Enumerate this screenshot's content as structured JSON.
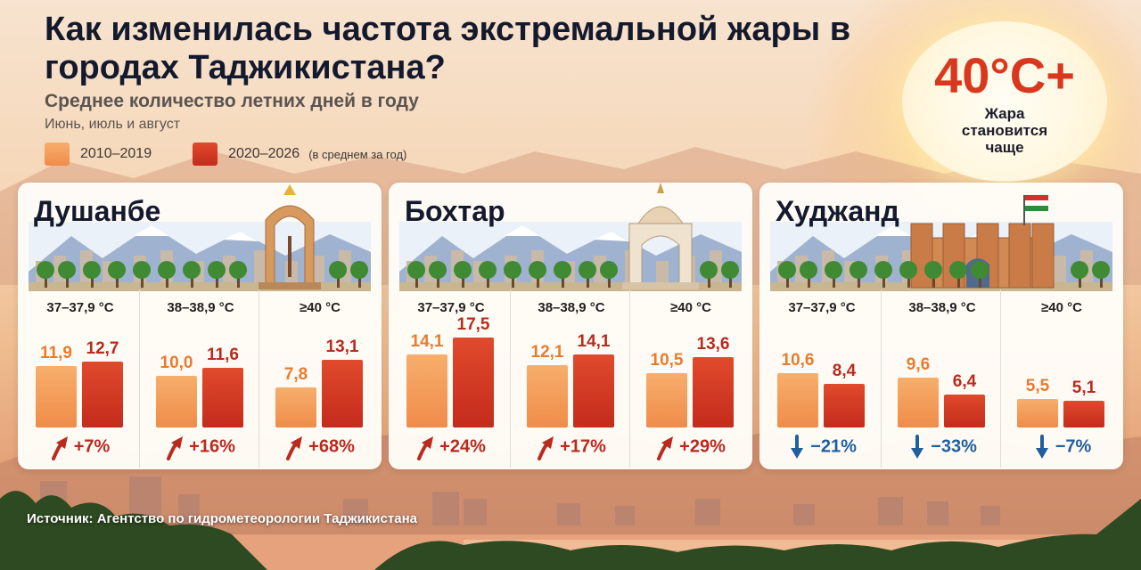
{
  "title": "Как изменилась частота экстремальной жары в городах Таджикистана?",
  "subtitle": "Среднее количество летних дней в году",
  "subnote": "Июнь, июль и август",
  "legend": {
    "period1": "2010–2019",
    "period2": "2020–2026",
    "period2_note": "(в среднем за год)"
  },
  "colors": {
    "period1": "#f4a15d",
    "period2": "#d23a24",
    "up": "#b92a1f",
    "down": "#1f5f9e"
  },
  "badge": {
    "big": "40°C+",
    "text": "Жара становится чаще"
  },
  "source": "Источник: Агентство по гидрометеорологии Таджикистана",
  "chart_data": {
    "type": "bar",
    "categories": [
      "37–37,9 °C",
      "38–38,9 °C",
      "≥40 °C"
    ],
    "series_names": [
      "2010–2019",
      "2020–2026"
    ],
    "cities": [
      {
        "name": "Душанбе",
        "groups": [
          {
            "label": "37–37,9 °C",
            "v1": 11.9,
            "v2": 12.7,
            "v1_text": "11,9",
            "v2_text": "12,7",
            "change": "+7%",
            "dir": "up"
          },
          {
            "label": "38–38,9 °C",
            "v1": 10.0,
            "v2": 11.6,
            "v1_text": "10,0",
            "v2_text": "11,6",
            "change": "+16%",
            "dir": "up"
          },
          {
            "label": "≥40 °C",
            "v1": 7.8,
            "v2": 13.1,
            "v1_text": "7,8",
            "v2_text": "13,1",
            "change": "+68%",
            "dir": "up"
          }
        ]
      },
      {
        "name": "Бохтар",
        "groups": [
          {
            "label": "37–37,9 °C",
            "v1": 14.1,
            "v2": 17.5,
            "v1_text": "14,1",
            "v2_text": "17,5",
            "change": "+24%",
            "dir": "up"
          },
          {
            "label": "38–38,9 °C",
            "v1": 12.1,
            "v2": 14.1,
            "v1_text": "12,1",
            "v2_text": "14,1",
            "change": "+17%",
            "dir": "up"
          },
          {
            "label": "≥40 °C",
            "v1": 10.5,
            "v2": 13.6,
            "v1_text": "10,5",
            "v2_text": "13,6",
            "change": "+29%",
            "dir": "up"
          }
        ]
      },
      {
        "name": "Худжанд",
        "groups": [
          {
            "label": "37–37,9 °C",
            "v1": 10.6,
            "v2": 8.4,
            "v1_text": "10,6",
            "v2_text": "8,4",
            "change": "−21%",
            "dir": "down"
          },
          {
            "label": "38–38,9 °C",
            "v1": 9.6,
            "v2": 6.4,
            "v1_text": "9,6",
            "v2_text": "6,4",
            "change": "−33%",
            "dir": "down"
          },
          {
            "label": "≥40 °C",
            "v1": 5.5,
            "v2": 5.1,
            "v1_text": "5,5",
            "v2_text": "5,1",
            "change": "−7%",
            "dir": "down"
          }
        ]
      }
    ]
  }
}
